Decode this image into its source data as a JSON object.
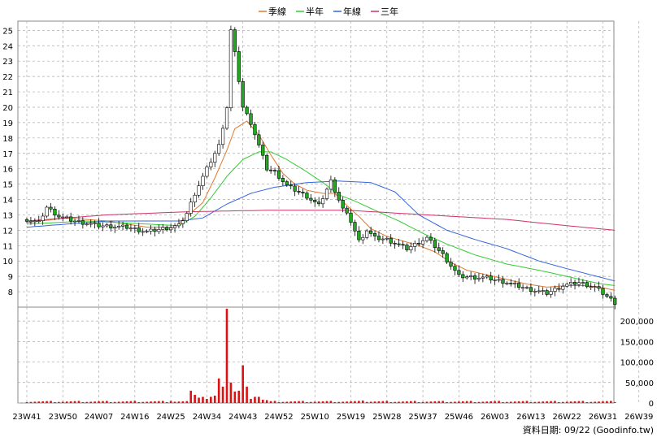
{
  "legend": [
    {
      "label": "季線",
      "color": "#e0782a"
    },
    {
      "label": "半年",
      "color": "#33cc33"
    },
    {
      "label": "年線",
      "color": "#3366dd"
    },
    {
      "label": "三年",
      "color": "#cc3366"
    }
  ],
  "credit": "資料日期: 09/22  (Goodinfo.tw)",
  "colors": {
    "up": "#ffffff",
    "down": "#22aa22",
    "candle_edge": "#000000",
    "volume": "#dd1111",
    "grid": "#aaaaaa"
  },
  "chart_data": {
    "type": "candlestick",
    "price_axis": {
      "ylim": [
        7,
        25.6
      ],
      "ticks": [
        8,
        9,
        10,
        11,
        12,
        13,
        14,
        15,
        16,
        17,
        18,
        19,
        20,
        21,
        22,
        23,
        24,
        25
      ]
    },
    "volume_axis": {
      "ylim": [
        0,
        230000
      ],
      "ticks": [
        0,
        50000,
        100000,
        150000,
        200000
      ],
      "tick_labels": [
        "0",
        "50,000",
        "100,000",
        "150,000",
        "200,000"
      ]
    },
    "x_labels": [
      "23W41",
      "23W50",
      "24W07",
      "24W16",
      "24W25",
      "24W34",
      "24W43",
      "24W52",
      "25W10",
      "25W19",
      "25W28",
      "25W37",
      "25W46",
      "26W03",
      "26W13",
      "26W22",
      "26W31",
      "26W39"
    ],
    "weeks_per_label": 9,
    "close_anchors": [
      [
        0,
        12.7
      ],
      [
        3,
        12.5
      ],
      [
        5,
        13.5
      ],
      [
        8,
        12.9
      ],
      [
        12,
        12.6
      ],
      [
        18,
        12.3
      ],
      [
        25,
        12.2
      ],
      [
        30,
        11.9
      ],
      [
        38,
        12.3
      ],
      [
        40,
        13.1
      ],
      [
        42,
        14.4
      ],
      [
        45,
        16.0
      ],
      [
        48,
        17.5
      ],
      [
        50,
        20.0
      ],
      [
        51,
        25.0
      ],
      [
        52,
        23.5
      ],
      [
        54,
        20.0
      ],
      [
        56,
        19.0
      ],
      [
        58,
        17.5
      ],
      [
        60,
        16.0
      ],
      [
        62,
        15.8
      ],
      [
        65,
        14.9
      ],
      [
        70,
        14.2
      ],
      [
        73,
        13.6
      ],
      [
        76,
        15.2
      ],
      [
        79,
        13.4
      ],
      [
        81,
        12.6
      ],
      [
        83,
        11.3
      ],
      [
        85,
        12.0
      ],
      [
        87,
        11.5
      ],
      [
        90,
        11.4
      ],
      [
        95,
        10.8
      ],
      [
        100,
        11.5
      ],
      [
        104,
        10.4
      ],
      [
        108,
        9.0
      ],
      [
        115,
        8.9
      ],
      [
        120,
        8.6
      ],
      [
        125,
        8.2
      ],
      [
        130,
        7.9
      ],
      [
        134,
        8.4
      ],
      [
        138,
        8.6
      ],
      [
        142,
        8.3
      ],
      [
        145,
        7.7
      ],
      [
        147,
        7.3
      ]
    ],
    "ma_quarter": [
      [
        0,
        12.5
      ],
      [
        10,
        12.8
      ],
      [
        20,
        12.6
      ],
      [
        30,
        12.2
      ],
      [
        37,
        12.2
      ],
      [
        40,
        12.9
      ],
      [
        44,
        13.8
      ],
      [
        47,
        15.4
      ],
      [
        50,
        17.2
      ],
      [
        52,
        18.6
      ],
      [
        55,
        19.1
      ],
      [
        58,
        18.2
      ],
      [
        61,
        16.9
      ],
      [
        64,
        15.7
      ],
      [
        67,
        15.0
      ],
      [
        70,
        14.6
      ],
      [
        74,
        14.4
      ],
      [
        77,
        14.4
      ],
      [
        80,
        13.6
      ],
      [
        83,
        12.9
      ],
      [
        86,
        12.1
      ],
      [
        90,
        11.6
      ],
      [
        94,
        11.3
      ],
      [
        98,
        11.0
      ],
      [
        102,
        10.6
      ],
      [
        106,
        9.9
      ],
      [
        110,
        9.4
      ],
      [
        115,
        9.1
      ],
      [
        120,
        8.8
      ],
      [
        125,
        8.5
      ],
      [
        130,
        8.3
      ],
      [
        135,
        8.4
      ],
      [
        140,
        8.4
      ],
      [
        143,
        8.3
      ],
      [
        147,
        8.1
      ]
    ],
    "ma_half": [
      [
        0,
        12.4
      ],
      [
        15,
        12.6
      ],
      [
        30,
        12.4
      ],
      [
        38,
        12.3
      ],
      [
        42,
        12.9
      ],
      [
        46,
        14.1
      ],
      [
        50,
        15.5
      ],
      [
        54,
        16.6
      ],
      [
        58,
        17.1
      ],
      [
        61,
        17.1
      ],
      [
        65,
        16.6
      ],
      [
        70,
        15.8
      ],
      [
        74,
        15.1
      ],
      [
        78,
        14.3
      ],
      [
        82,
        13.9
      ],
      [
        87,
        13.3
      ],
      [
        93,
        12.6
      ],
      [
        99,
        11.8
      ],
      [
        105,
        11.1
      ],
      [
        112,
        10.4
      ],
      [
        120,
        9.8
      ],
      [
        128,
        9.4
      ],
      [
        135,
        9.0
      ],
      [
        140,
        8.7
      ],
      [
        144,
        8.5
      ],
      [
        147,
        8.4
      ]
    ],
    "ma_year": [
      [
        0,
        12.2
      ],
      [
        20,
        12.6
      ],
      [
        38,
        12.6
      ],
      [
        44,
        12.8
      ],
      [
        50,
        13.7
      ],
      [
        56,
        14.4
      ],
      [
        62,
        14.8
      ],
      [
        70,
        15.1
      ],
      [
        78,
        15.2
      ],
      [
        86,
        15.1
      ],
      [
        92,
        14.5
      ],
      [
        98,
        13.0
      ],
      [
        105,
        12.0
      ],
      [
        112,
        11.4
      ],
      [
        120,
        10.8
      ],
      [
        128,
        10.0
      ],
      [
        135,
        9.5
      ],
      [
        141,
        9.1
      ],
      [
        147,
        8.7
      ]
    ],
    "ma_three": [
      [
        0,
        12.6
      ],
      [
        20,
        13.0
      ],
      [
        40,
        13.2
      ],
      [
        60,
        13.3
      ],
      [
        80,
        13.3
      ],
      [
        100,
        13.0
      ],
      [
        120,
        12.7
      ],
      [
        135,
        12.3
      ],
      [
        147,
        12.0
      ]
    ],
    "volume_spikes": [
      [
        36,
        5000
      ],
      [
        41,
        30000
      ],
      [
        42,
        20000
      ],
      [
        43,
        13000
      ],
      [
        44,
        15000
      ],
      [
        45,
        10000
      ],
      [
        46,
        15000
      ],
      [
        47,
        18000
      ],
      [
        48,
        60000
      ],
      [
        49,
        40000
      ],
      [
        50,
        230000
      ],
      [
        51,
        50000
      ],
      [
        52,
        28000
      ],
      [
        53,
        30000
      ],
      [
        54,
        92000
      ],
      [
        55,
        40000
      ],
      [
        56,
        10000
      ],
      [
        57,
        15000
      ],
      [
        58,
        15000
      ],
      [
        59,
        8000
      ],
      [
        60,
        7000
      ],
      [
        84,
        6000
      ]
    ],
    "volume_base": 3500
  }
}
